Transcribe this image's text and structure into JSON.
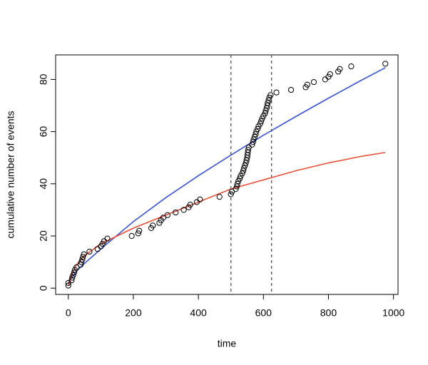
{
  "chart_data": {
    "type": "scatter",
    "x_label": "time",
    "y_label": "cumulative number of events",
    "xlim": [
      -39,
      1014
    ],
    "ylim": [
      -2.4,
      89.4
    ],
    "xticks": [
      0,
      200,
      400,
      600,
      800,
      1000
    ],
    "yticks": [
      0,
      20,
      40,
      60,
      80
    ],
    "points": {
      "color": "#000000",
      "x": [
        0,
        0,
        10,
        12,
        15,
        18,
        20,
        25,
        38,
        40,
        43,
        45,
        48,
        65,
        90,
        100,
        105,
        110,
        120,
        195,
        215,
        218,
        255,
        260,
        280,
        285,
        292,
        305,
        330,
        355,
        370,
        375,
        395,
        405,
        465,
        500,
        503,
        515,
        518,
        520,
        523,
        527,
        530,
        535,
        538,
        540,
        543,
        546,
        548,
        550,
        551,
        552,
        553,
        555,
        565,
        568,
        570,
        573,
        576,
        578,
        582,
        585,
        590,
        593,
        596,
        600,
        605,
        607,
        610,
        612,
        613,
        616,
        618,
        622,
        640,
        685,
        730,
        735,
        755,
        790,
        800,
        805,
        830,
        835,
        870,
        975
      ],
      "values": [
        1,
        2,
        3,
        4,
        5,
        6,
        7,
        8,
        9,
        10,
        11,
        12,
        13,
        14,
        15,
        16,
        17,
        18,
        19,
        20,
        21,
        22,
        23,
        24,
        25,
        26,
        27,
        28,
        29,
        30,
        31,
        32,
        33,
        34,
        35,
        36,
        37,
        38,
        39,
        40,
        41,
        42,
        43,
        44,
        45,
        46,
        47,
        48,
        49,
        50,
        51,
        52,
        53,
        54,
        55,
        56,
        57,
        58,
        59,
        60,
        61,
        62,
        63,
        64,
        65,
        66,
        67,
        68,
        69,
        70,
        71,
        72,
        73,
        74,
        75,
        76,
        77,
        78,
        79,
        80,
        81,
        82,
        83,
        84,
        85,
        86
      ]
    },
    "curve_x": [
      0,
      10,
      25,
      50,
      100,
      200,
      300,
      400,
      500,
      600,
      700,
      800,
      900,
      975
    ],
    "curves": [
      {
        "color": "#3a55d6",
        "values": [
          2,
          4,
          6.5,
          9.5,
          15,
          25.5,
          34.7,
          43.1,
          51,
          58.6,
          65.8,
          72.8,
          79.6,
          84.5
        ]
      },
      {
        "color": "#e8503a",
        "values": [
          1,
          5,
          9,
          12.5,
          17,
          23,
          28,
          33,
          38,
          41.5,
          45,
          48,
          50.5,
          52
        ]
      }
    ],
    "vlines": [
      500,
      625
    ],
    "vline_color": "#555555"
  }
}
